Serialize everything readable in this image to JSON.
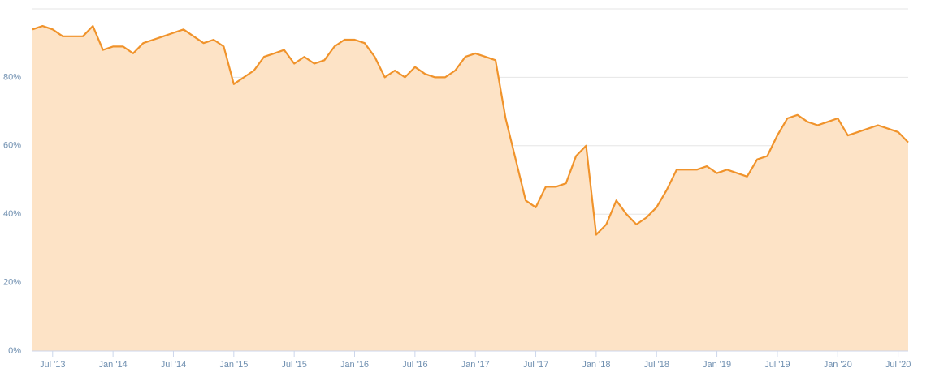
{
  "chart_data": {
    "type": "area",
    "x": [
      "2013-05",
      "2013-06",
      "2013-07",
      "2013-08",
      "2013-09",
      "2013-10",
      "2013-11",
      "2013-12",
      "2014-01",
      "2014-02",
      "2014-03",
      "2014-04",
      "2014-05",
      "2014-06",
      "2014-07",
      "2014-08",
      "2014-09",
      "2014-10",
      "2014-11",
      "2014-12",
      "2015-01",
      "2015-02",
      "2015-03",
      "2015-04",
      "2015-05",
      "2015-06",
      "2015-07",
      "2015-08",
      "2015-09",
      "2015-10",
      "2015-11",
      "2015-12",
      "2016-01",
      "2016-02",
      "2016-03",
      "2016-04",
      "2016-05",
      "2016-06",
      "2016-07",
      "2016-08",
      "2016-09",
      "2016-10",
      "2016-11",
      "2016-12",
      "2017-01",
      "2017-02",
      "2017-03",
      "2017-04",
      "2017-05",
      "2017-06",
      "2017-07",
      "2017-08",
      "2017-09",
      "2017-10",
      "2017-11",
      "2017-12",
      "2018-01",
      "2018-02",
      "2018-03",
      "2018-04",
      "2018-05",
      "2018-06",
      "2018-07",
      "2018-08",
      "2018-09",
      "2018-10",
      "2018-11",
      "2018-12",
      "2019-01",
      "2019-02",
      "2019-03",
      "2019-04",
      "2019-05",
      "2019-06",
      "2019-07",
      "2019-08",
      "2019-09",
      "2019-10",
      "2019-11",
      "2019-12",
      "2020-01",
      "2020-02",
      "2020-03",
      "2020-04",
      "2020-05",
      "2020-06",
      "2020-07",
      "2020-08"
    ],
    "values": [
      94,
      95,
      94,
      92,
      92,
      92,
      95,
      88,
      89,
      89,
      87,
      90,
      91,
      92,
      93,
      94,
      92,
      90,
      91,
      89,
      78,
      80,
      82,
      86,
      87,
      88,
      84,
      86,
      84,
      85,
      89,
      91,
      91,
      90,
      86,
      80,
      82,
      80,
      83,
      81,
      80,
      80,
      82,
      86,
      87,
      86,
      85,
      68,
      56,
      44,
      42,
      48,
      48,
      49,
      57,
      60,
      34,
      37,
      44,
      40,
      37,
      39,
      42,
      47,
      53,
      53,
      53,
      54,
      52,
      53,
      52,
      51,
      56,
      57,
      63,
      68,
      69,
      67,
      66,
      67,
      68,
      63,
      64,
      65,
      66,
      65,
      64,
      61
    ],
    "color": "#f0932b",
    "area_color": "#fde3c6",
    "xlim": [
      "2013-05",
      "2020-08"
    ],
    "xticks": [
      {
        "value": "2013-07",
        "label": "Jul '13"
      },
      {
        "value": "2014-01",
        "label": "Jan '14"
      },
      {
        "value": "2014-07",
        "label": "Jul '14"
      },
      {
        "value": "2015-01",
        "label": "Jan '15"
      },
      {
        "value": "2015-07",
        "label": "Jul '15"
      },
      {
        "value": "2016-01",
        "label": "Jan '16"
      },
      {
        "value": "2016-07",
        "label": "Jul '16"
      },
      {
        "value": "2017-01",
        "label": "Jan '17"
      },
      {
        "value": "2017-07",
        "label": "Jul '17"
      },
      {
        "value": "2018-01",
        "label": "Jan '18"
      },
      {
        "value": "2018-07",
        "label": "Jul '18"
      },
      {
        "value": "2019-01",
        "label": "Jan '19"
      },
      {
        "value": "2019-07",
        "label": "Jul '19"
      },
      {
        "value": "2020-01",
        "label": "Jan '20"
      },
      {
        "value": "2020-07",
        "label": "Jul '20"
      }
    ],
    "ylim": [
      0,
      100
    ],
    "yticks": [
      {
        "value": 0,
        "label": "0%"
      },
      {
        "value": 20,
        "label": "20%"
      },
      {
        "value": 40,
        "label": "40%"
      },
      {
        "value": 60,
        "label": "60%"
      },
      {
        "value": 80,
        "label": "80%"
      }
    ],
    "grid": true
  }
}
